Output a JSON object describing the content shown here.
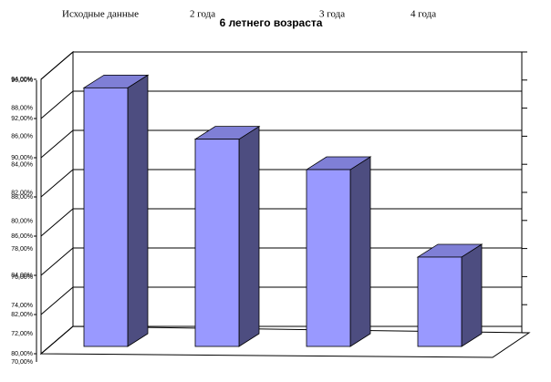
{
  "chart_data": {
    "type": "bar",
    "title": "6 летнего возраста",
    "categories": [
      "Исходные данные",
      "2 года",
      "3 года",
      "4 года"
    ],
    "values": [
      93.6,
      90.9,
      89.3,
      84.7
    ],
    "color": "#9999ff",
    "grid": true,
    "ylim": [
      80,
      94
    ],
    "yticks": [
      {
        "value": 80,
        "label": "80,00%"
      },
      {
        "value": 82,
        "label": "82,00%"
      },
      {
        "value": 84,
        "label": "84,00%"
      },
      {
        "value": 86,
        "label": "86,00%"
      },
      {
        "value": 88,
        "label": "88,00%"
      },
      {
        "value": 90,
        "label": "90,00%"
      },
      {
        "value": 92,
        "label": "92,00%"
      },
      {
        "value": 94,
        "label": "94,00%"
      }
    ],
    "y2lim": [
      70,
      90
    ],
    "y2ticks": [
      {
        "value": 70,
        "label": "70,00%"
      },
      {
        "value": 72,
        "label": "72,00%"
      },
      {
        "value": 74,
        "label": "74,00%"
      },
      {
        "value": 76,
        "label": "76,00%"
      },
      {
        "value": 78,
        "label": "78,00%"
      },
      {
        "value": 80,
        "label": "80,00%"
      },
      {
        "value": 82,
        "label": "82,00%"
      },
      {
        "value": 84,
        "label": "84,00%"
      },
      {
        "value": 86,
        "label": "86,00%"
      },
      {
        "value": 88,
        "label": "88,00%"
      },
      {
        "value": 90,
        "label": "90,00%"
      }
    ]
  }
}
